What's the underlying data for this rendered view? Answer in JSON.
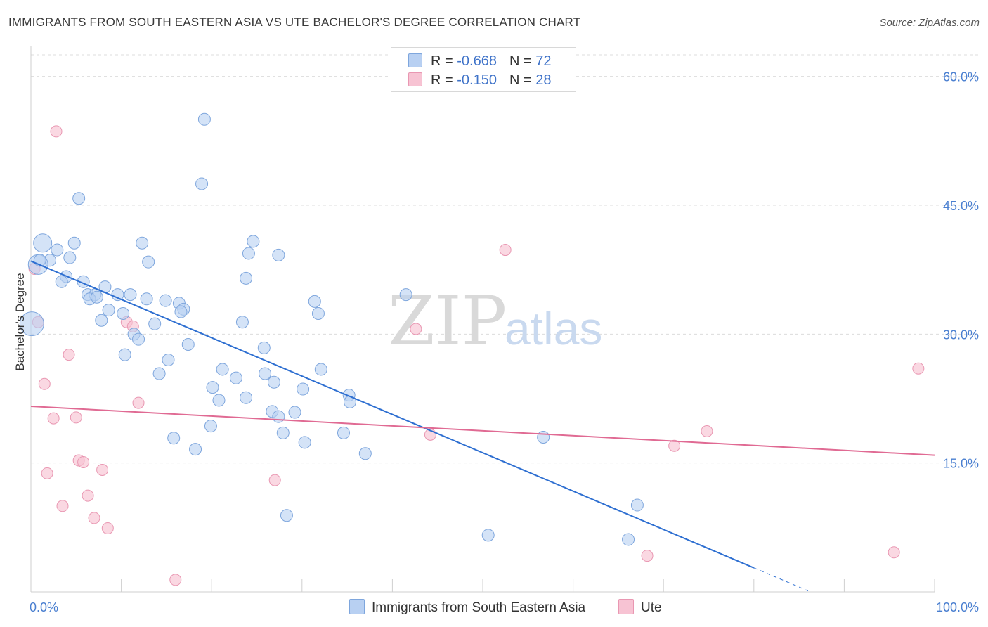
{
  "title": "IMMIGRANTS FROM SOUTH EASTERN ASIA VS UTE BACHELOR'S DEGREE CORRELATION CHART",
  "source": "Source: ZipAtlas.com",
  "watermark": {
    "zip": "ZIP",
    "atlas": "atlas"
  },
  "colors": {
    "blue_fill": "#b8d0f2",
    "blue_stroke": "#7ea6dd",
    "blue_line": "#2e6fd1",
    "pink_fill": "#f7c3d3",
    "pink_stroke": "#e997b2",
    "pink_line": "#e06a93",
    "grid": "#dcdcdc",
    "axis_text": "#4a7fd0"
  },
  "legend": {
    "series1": {
      "r_label": "R = ",
      "r_value": "-0.668",
      "n_label": "N = ",
      "n_value": "72"
    },
    "series2": {
      "r_label": "R = ",
      "r_value": "-0.150",
      "n_label": "N = ",
      "n_value": "28"
    }
  },
  "bottom_legend": {
    "series1": "Immigrants from South Eastern Asia",
    "series2": "Ute"
  },
  "chart_data": {
    "type": "scatter",
    "title": "IMMIGRANTS FROM SOUTH EASTERN ASIA VS UTE BACHELOR'S DEGREE CORRELATION CHART",
    "xlabel": "",
    "ylabel": "Bachelor's Degree",
    "xlim": [
      0,
      100
    ],
    "ylim": [
      0,
      63
    ],
    "x_tick_labels": [
      {
        "value": 0,
        "label": "0.0%"
      },
      {
        "value": 100,
        "label": "100.0%"
      }
    ],
    "y_tick_labels": [
      {
        "value": 15,
        "label": "15.0%"
      },
      {
        "value": 30,
        "label": "30.0%"
      },
      {
        "value": 45,
        "label": "45.0%"
      },
      {
        "value": 60,
        "label": "60.0%"
      }
    ],
    "series": [
      {
        "name": "Immigrants from South Eastern Asia",
        "color": "blue",
        "R": -0.668,
        "N": 72,
        "trend": {
          "x0": 0,
          "y0": 38.5,
          "x1": 80,
          "y1": 2.8,
          "dash_to_x": 86
        },
        "points": [
          [
            19.2,
            55.0
          ],
          [
            18.9,
            47.5
          ],
          [
            5.3,
            45.8
          ],
          [
            1.3,
            40.6
          ],
          [
            2.9,
            39.8
          ],
          [
            4.8,
            40.6
          ],
          [
            12.3,
            40.6
          ],
          [
            24.1,
            39.4
          ],
          [
            24.6,
            40.8
          ],
          [
            27.4,
            39.2
          ],
          [
            2.1,
            38.6
          ],
          [
            0.8,
            38.1
          ],
          [
            1.0,
            38.6
          ],
          [
            4.3,
            38.9
          ],
          [
            13.0,
            38.4
          ],
          [
            3.9,
            36.7
          ],
          [
            3.4,
            36.1
          ],
          [
            5.8,
            36.1
          ],
          [
            8.2,
            35.5
          ],
          [
            11.0,
            34.6
          ],
          [
            6.3,
            34.6
          ],
          [
            7.1,
            34.6
          ],
          [
            6.5,
            34.1
          ],
          [
            7.3,
            34.3
          ],
          [
            9.6,
            34.6
          ],
          [
            12.8,
            34.1
          ],
          [
            14.9,
            33.9
          ],
          [
            16.4,
            33.6
          ],
          [
            16.9,
            32.9
          ],
          [
            16.6,
            32.6
          ],
          [
            31.4,
            33.8
          ],
          [
            31.8,
            32.4
          ],
          [
            8.6,
            32.8
          ],
          [
            10.2,
            32.4
          ],
          [
            23.8,
            36.5
          ],
          [
            41.5,
            34.6
          ],
          [
            7.8,
            31.6
          ],
          [
            13.7,
            31.2
          ],
          [
            23.4,
            31.4
          ],
          [
            11.4,
            30.0
          ],
          [
            11.9,
            29.4
          ],
          [
            17.4,
            28.8
          ],
          [
            25.8,
            28.4
          ],
          [
            10.4,
            27.6
          ],
          [
            15.2,
            27.0
          ],
          [
            14.2,
            25.4
          ],
          [
            21.2,
            25.9
          ],
          [
            25.9,
            25.4
          ],
          [
            32.1,
            25.9
          ],
          [
            22.7,
            24.9
          ],
          [
            26.9,
            24.4
          ],
          [
            20.1,
            23.8
          ],
          [
            30.1,
            23.6
          ],
          [
            23.8,
            22.6
          ],
          [
            20.8,
            22.3
          ],
          [
            35.2,
            22.9
          ],
          [
            35.3,
            22.1
          ],
          [
            26.7,
            21.0
          ],
          [
            27.4,
            20.4
          ],
          [
            29.2,
            20.9
          ],
          [
            19.9,
            19.3
          ],
          [
            27.9,
            18.5
          ],
          [
            34.6,
            18.5
          ],
          [
            15.8,
            17.9
          ],
          [
            30.3,
            17.4
          ],
          [
            18.2,
            16.6
          ],
          [
            37.0,
            16.1
          ],
          [
            56.7,
            18.0
          ],
          [
            28.3,
            8.9
          ],
          [
            50.6,
            6.6
          ],
          [
            67.1,
            10.1
          ],
          [
            66.1,
            6.1
          ]
        ]
      },
      {
        "name": "Ute",
        "color": "pink",
        "R": -0.15,
        "N": 28,
        "trend": {
          "x0": 0,
          "y0": 21.6,
          "x1": 100,
          "y1": 15.9
        },
        "points": [
          [
            2.8,
            53.6
          ],
          [
            52.5,
            39.8
          ],
          [
            0.4,
            37.6
          ],
          [
            0.8,
            31.4
          ],
          [
            10.6,
            31.4
          ],
          [
            11.3,
            30.9
          ],
          [
            42.6,
            30.6
          ],
          [
            4.2,
            27.6
          ],
          [
            98.2,
            26.0
          ],
          [
            1.5,
            24.2
          ],
          [
            11.9,
            22.0
          ],
          [
            2.5,
            20.2
          ],
          [
            5.0,
            20.3
          ],
          [
            74.8,
            18.7
          ],
          [
            44.2,
            18.3
          ],
          [
            71.2,
            17.0
          ],
          [
            5.3,
            15.3
          ],
          [
            5.8,
            15.1
          ],
          [
            7.9,
            14.2
          ],
          [
            1.8,
            13.8
          ],
          [
            27.0,
            13.0
          ],
          [
            6.3,
            11.2
          ],
          [
            3.5,
            10.0
          ],
          [
            7.0,
            8.6
          ],
          [
            8.5,
            7.4
          ],
          [
            68.2,
            4.2
          ],
          [
            95.5,
            4.6
          ],
          [
            16.0,
            1.4
          ]
        ]
      }
    ]
  }
}
